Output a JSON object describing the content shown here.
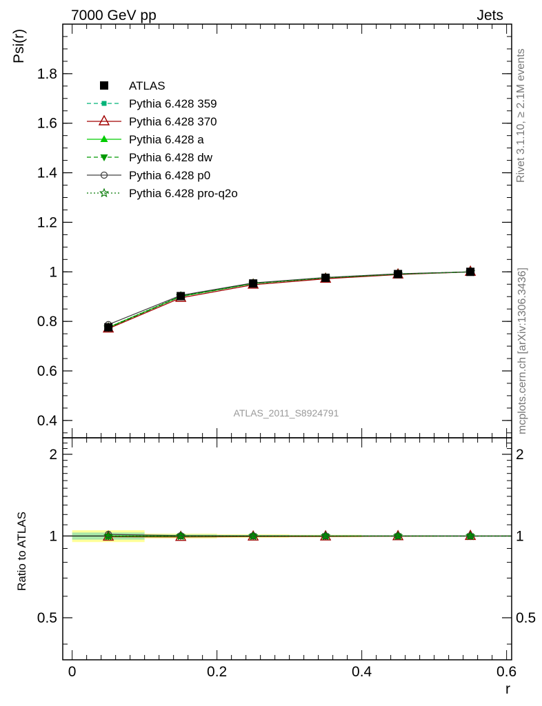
{
  "header": {
    "left": "7000 GeV pp",
    "right": "Jets"
  },
  "side_labels": {
    "rivet": "Rivet 3.1.10, ≥ 2.1M events",
    "mcplots": "mcplots.cern.ch [arXiv:1306.3436]"
  },
  "watermark": "ATLAS_2011_S8924791",
  "chart_data": [
    {
      "type": "line",
      "panel": "main",
      "title": "",
      "xlabel": "r",
      "ylabel": "Psi(r)",
      "xlim": [
        -0.013,
        0.607
      ],
      "ylim": [
        0.33,
        2.0
      ],
      "yticks": [
        0.4,
        0.6,
        0.8,
        1,
        1.2,
        1.4,
        1.6,
        1.8
      ],
      "ytick_labels": [
        "0.4",
        "0.6",
        "0.8",
        "1",
        "1.2",
        "1.4",
        "1.6",
        "1.8"
      ],
      "x": [
        0.05,
        0.15,
        0.25,
        0.35,
        0.45,
        0.55
      ],
      "series": [
        {
          "name": "ATLAS",
          "color": "#000000",
          "marker": "square",
          "line": "none",
          "values": [
            0.776,
            0.902,
            0.953,
            0.976,
            0.991,
            1.0
          ]
        },
        {
          "name": "Pythia 6.428 359",
          "color": "#00b377",
          "marker": "small-square",
          "line": "dashed",
          "values": [
            0.774,
            0.901,
            0.953,
            0.976,
            0.991,
            1.0
          ]
        },
        {
          "name": "Pythia 6.428 370",
          "color": "#a00000",
          "marker": "open-triangle",
          "line": "solid",
          "values": [
            0.771,
            0.895,
            0.948,
            0.972,
            0.989,
            1.0
          ]
        },
        {
          "name": "Pythia 6.428 a",
          "color": "#00cc00",
          "marker": "triangle",
          "line": "solid",
          "values": [
            0.776,
            0.901,
            0.953,
            0.976,
            0.991,
            1.0
          ]
        },
        {
          "name": "Pythia 6.428 dw",
          "color": "#009900",
          "marker": "triangle-down",
          "line": "dashed",
          "values": [
            0.774,
            0.901,
            0.953,
            0.976,
            0.991,
            1.0
          ]
        },
        {
          "name": "Pythia 6.428 p0",
          "color": "#404040",
          "marker": "open-circle",
          "line": "solid",
          "values": [
            0.787,
            0.905,
            0.955,
            0.977,
            0.992,
            1.0
          ]
        },
        {
          "name": "Pythia 6.428 pro-q2o",
          "color": "#007700",
          "marker": "star",
          "line": "dotted",
          "values": [
            0.776,
            0.902,
            0.953,
            0.976,
            0.991,
            1.0
          ]
        }
      ],
      "legend": "top-left"
    },
    {
      "type": "line",
      "panel": "ratio",
      "xlabel": "r",
      "ylabel": "Ratio to ATLAS",
      "xlim": [
        -0.013,
        0.607
      ],
      "ylim": [
        0.35,
        2.3
      ],
      "scale": "log",
      "yticks": [
        0.5,
        1,
        2
      ],
      "ytick_labels": [
        "0.5",
        "1",
        "2"
      ],
      "xticks": [
        0,
        0.2,
        0.4,
        0.6
      ],
      "xtick_labels": [
        "0",
        "0.2",
        "0.4",
        "0.6"
      ],
      "x": [
        0.05,
        0.15,
        0.25,
        0.35,
        0.45,
        0.55
      ],
      "series": [
        {
          "name": "Pythia 6.428 359",
          "values": [
            0.997,
            0.999,
            1.0,
            1.0,
            1.0,
            1.0
          ]
        },
        {
          "name": "Pythia 6.428 370",
          "values": [
            0.994,
            0.992,
            0.995,
            0.996,
            0.998,
            1.0
          ]
        },
        {
          "name": "Pythia 6.428 a",
          "values": [
            1.0,
            0.999,
            1.0,
            1.0,
            1.0,
            1.0
          ]
        },
        {
          "name": "Pythia 6.428 dw",
          "values": [
            0.997,
            0.999,
            1.0,
            1.0,
            1.0,
            1.0
          ]
        },
        {
          "name": "Pythia 6.428 p0",
          "values": [
            1.014,
            1.003,
            1.002,
            1.001,
            1.001,
            1.0
          ]
        },
        {
          "name": "Pythia 6.428 pro-q2o",
          "values": [
            1.0,
            1.0,
            1.0,
            1.0,
            1.0,
            1.0
          ]
        }
      ],
      "uncertainty_band": {
        "x_edges": [
          0.0,
          0.1,
          0.2,
          0.3,
          0.4,
          0.5,
          0.6
        ],
        "stat": [
          0.03,
          0.012,
          0.008,
          0.006,
          0.004,
          0.002
        ],
        "total": [
          0.05,
          0.02,
          0.014,
          0.01,
          0.006,
          0.003
        ],
        "stat_color": "#a8e6a8",
        "total_color": "#ffff99"
      }
    }
  ]
}
